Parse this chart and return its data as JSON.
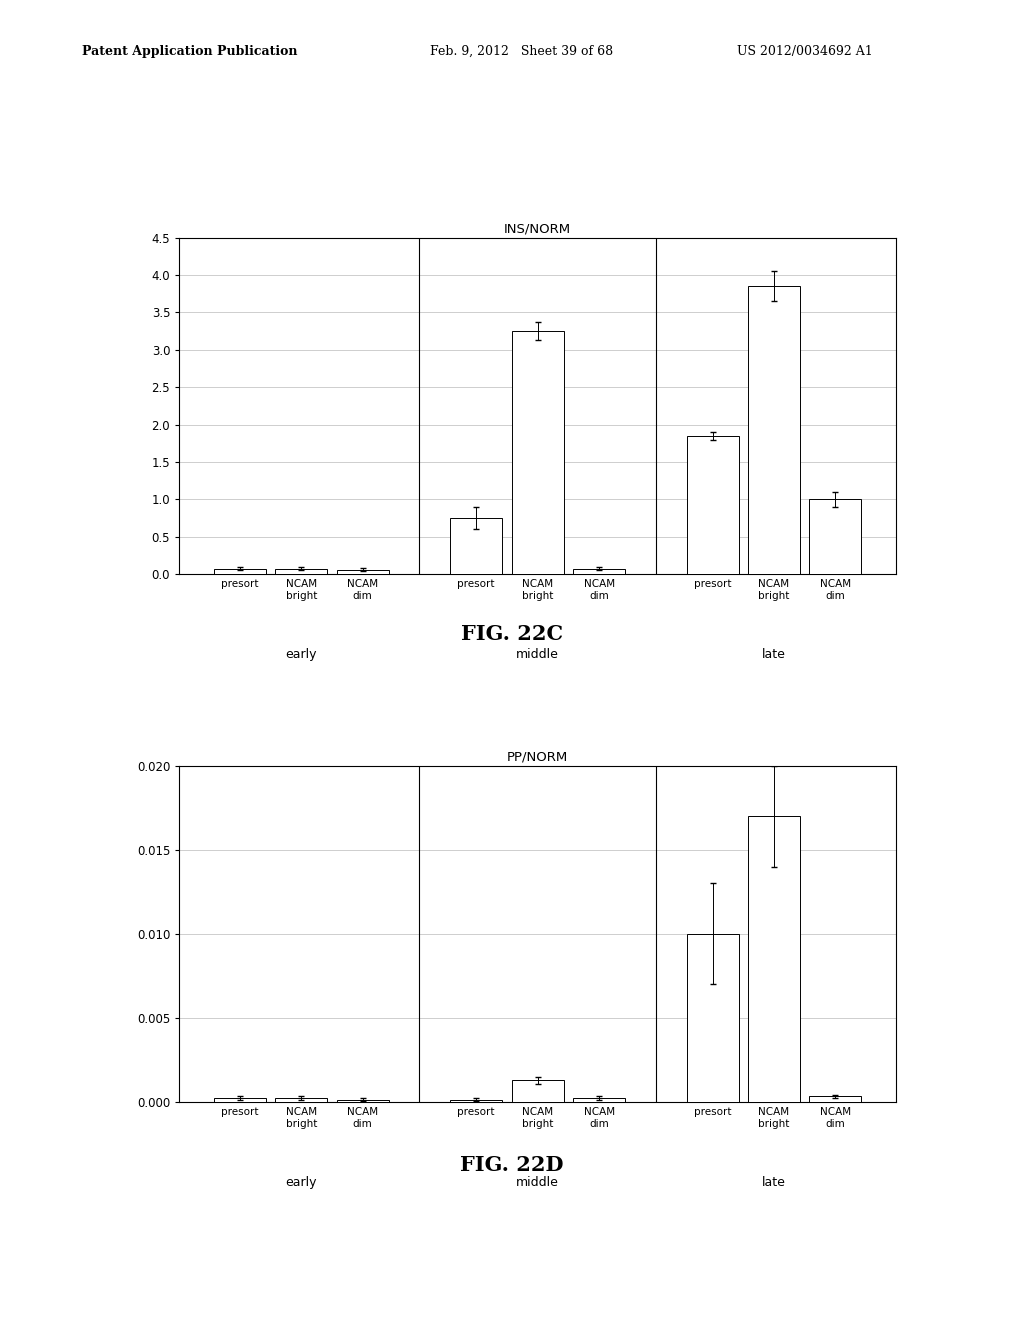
{
  "chart1": {
    "title": "INS/NORM",
    "ylim": [
      0,
      4.5
    ],
    "yticks": [
      0,
      0.5,
      1,
      1.5,
      2,
      2.5,
      3,
      3.5,
      4,
      4.5
    ],
    "groups": [
      "early",
      "middle",
      "late"
    ],
    "bar_labels": [
      "presort",
      "NCAM\nbright",
      "NCAM\ndim"
    ],
    "values": [
      [
        0.07,
        0.07,
        0.06
      ],
      [
        0.75,
        3.25,
        0.07
      ],
      [
        1.85,
        3.85,
        1.0
      ]
    ],
    "errors": [
      [
        0.02,
        0.02,
        0.02
      ],
      [
        0.15,
        0.12,
        0.02
      ],
      [
        0.05,
        0.2,
        0.1
      ]
    ],
    "fig_label": "FIG. 22C"
  },
  "chart2": {
    "title": "PP/NORM",
    "ylim": [
      0,
      0.02
    ],
    "yticks": [
      0,
      0.005,
      0.01,
      0.015,
      0.02
    ],
    "groups": [
      "early",
      "middle",
      "late"
    ],
    "bar_labels": [
      "presort",
      "NCAM\nbright",
      "NCAM\ndim"
    ],
    "values": [
      [
        0.00025,
        0.00025,
        0.00015
      ],
      [
        0.00015,
        0.0013,
        0.00025
      ],
      [
        0.01,
        0.017,
        0.00035
      ]
    ],
    "errors": [
      [
        0.0001,
        0.0001,
        0.0001
      ],
      [
        0.0001,
        0.0002,
        0.0001
      ],
      [
        0.003,
        0.003,
        0.0001
      ]
    ],
    "fig_label": "FIG. 22D"
  },
  "header_left": "Patent Application Publication",
  "header_mid": "Feb. 9, 2012   Sheet 39 of 68",
  "header_right": "US 2012/0034692 A1",
  "bar_color": "white",
  "bar_edgecolor": "black",
  "grid_color": "#bbbbbb",
  "background_color": "white"
}
